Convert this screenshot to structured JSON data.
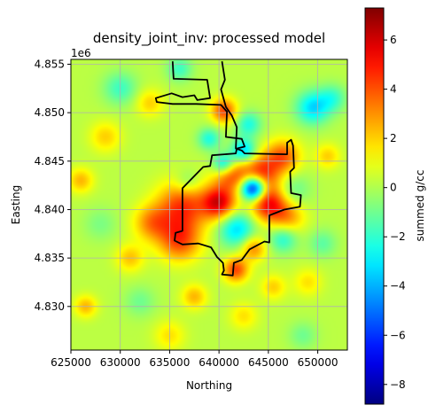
{
  "chart_data": {
    "type": "heatmap",
    "title": "density_joint_inv: processed model",
    "xlabel": "Northing",
    "ylabel": "Easting",
    "y_offset_label": "1e6",
    "xlim": [
      625000,
      653000
    ],
    "ylim": [
      4825500,
      4855500
    ],
    "x_ticks": [
      625000,
      630000,
      635000,
      640000,
      645000,
      650000
    ],
    "x_tick_labels": [
      "625000",
      "630000",
      "635000",
      "640000",
      "645000",
      "650000"
    ],
    "y_ticks": [
      4830000,
      4835000,
      4840000,
      4845000,
      4850000,
      4855000
    ],
    "y_tick_labels": [
      "4.830",
      "4.835",
      "4.840",
      "4.845",
      "4.850",
      "4.855"
    ],
    "grid": true,
    "colormap": "jet",
    "colorbar": {
      "label": "summed g/cc",
      "range": [
        -8.8,
        7.3
      ],
      "ticks": [
        -8,
        -6,
        -4,
        -2,
        0,
        2,
        4,
        6
      ],
      "tick_labels": [
        "−8",
        "−6",
        "−4",
        "−2",
        "0",
        "2",
        "4",
        "6"
      ]
    },
    "background_value": 0.2,
    "anomalies": [
      {
        "x": 643500,
        "y": 4842200,
        "value": -8.8,
        "radius": 900
      },
      {
        "x": 645000,
        "y": 4840600,
        "value": 5.0,
        "radius": 1300
      },
      {
        "x": 640000,
        "y": 4840700,
        "value": 5.5,
        "radius": 1200
      },
      {
        "x": 644200,
        "y": 4843700,
        "value": 4.5,
        "radius": 1400
      },
      {
        "x": 641200,
        "y": 4843600,
        "value": 3.5,
        "radius": 1200
      },
      {
        "x": 641800,
        "y": 4838000,
        "value": -3.5,
        "radius": 1300
      },
      {
        "x": 642500,
        "y": 4846000,
        "value": -4.0,
        "radius": 900
      },
      {
        "x": 640500,
        "y": 4844700,
        "value": -4.0,
        "radius": 800
      },
      {
        "x": 646500,
        "y": 4845500,
        "value": 3.5,
        "radius": 1200
      },
      {
        "x": 636300,
        "y": 4840300,
        "value": 4.2,
        "radius": 1800
      },
      {
        "x": 636000,
        "y": 4836800,
        "value": 3.8,
        "radius": 1500
      },
      {
        "x": 633200,
        "y": 4838600,
        "value": 2.8,
        "radius": 1300
      },
      {
        "x": 640500,
        "y": 4850200,
        "value": 4.0,
        "radius": 900
      },
      {
        "x": 643000,
        "y": 4848800,
        "value": -2.5,
        "radius": 900
      },
      {
        "x": 639000,
        "y": 4847300,
        "value": -2.5,
        "radius": 800
      },
      {
        "x": 641700,
        "y": 4833800,
        "value": 4.0,
        "radius": 900
      },
      {
        "x": 643500,
        "y": 4836000,
        "value": 3.0,
        "radius": 900
      },
      {
        "x": 647000,
        "y": 4839200,
        "value": 2.5,
        "radius": 1200
      },
      {
        "x": 636800,
        "y": 4842800,
        "value": -1.5,
        "radius": 900
      },
      {
        "x": 646500,
        "y": 4837000,
        "value": -2.5,
        "radius": 1000
      },
      {
        "x": 647500,
        "y": 4842000,
        "value": -1.5,
        "radius": 1200
      },
      {
        "x": 649500,
        "y": 4850500,
        "value": -3.5,
        "radius": 1200
      },
      {
        "x": 651500,
        "y": 4851500,
        "value": -2.0,
        "radius": 1000
      },
      {
        "x": 626000,
        "y": 4843000,
        "value": 2.2,
        "radius": 900
      },
      {
        "x": 626500,
        "y": 4830000,
        "value": 2.2,
        "radius": 800
      },
      {
        "x": 630000,
        "y": 4852500,
        "value": -2.0,
        "radius": 1200
      },
      {
        "x": 633000,
        "y": 4851000,
        "value": 1.8,
        "radius": 1000
      },
      {
        "x": 636000,
        "y": 4854500,
        "value": -2.0,
        "radius": 900
      },
      {
        "x": 631000,
        "y": 4835000,
        "value": 2.0,
        "radius": 1000
      },
      {
        "x": 637500,
        "y": 4831000,
        "value": 2.2,
        "radius": 900
      },
      {
        "x": 632000,
        "y": 4830500,
        "value": -1.2,
        "radius": 1100
      },
      {
        "x": 645500,
        "y": 4832000,
        "value": 1.8,
        "radius": 900
      },
      {
        "x": 649000,
        "y": 4832500,
        "value": 1.5,
        "radius": 1000
      },
      {
        "x": 650500,
        "y": 4836500,
        "value": -1.5,
        "radius": 1000
      },
      {
        "x": 628500,
        "y": 4847500,
        "value": 1.8,
        "radius": 1100
      },
      {
        "x": 651000,
        "y": 4845500,
        "value": 1.8,
        "radius": 900
      },
      {
        "x": 635000,
        "y": 4827000,
        "value": 1.5,
        "radius": 1100
      },
      {
        "x": 642500,
        "y": 4829000,
        "value": 1.5,
        "radius": 1000
      },
      {
        "x": 628000,
        "y": 4838500,
        "value": -1.0,
        "radius": 1200
      },
      {
        "x": 648500,
        "y": 4827000,
        "value": -1.2,
        "radius": 1000
      }
    ],
    "boundary": [
      [
        635300,
        4855300
      ],
      [
        635400,
        4853500
      ],
      [
        638800,
        4853400
      ],
      [
        639100,
        4851500
      ],
      [
        637800,
        4851300
      ],
      [
        637500,
        4851800
      ],
      [
        636300,
        4851600
      ],
      [
        635200,
        4852000
      ],
      [
        633600,
        4851500
      ],
      [
        633700,
        4851100
      ],
      [
        635300,
        4850900
      ],
      [
        637700,
        4850900
      ],
      [
        640200,
        4850800
      ],
      [
        640800,
        4850100
      ],
      [
        640700,
        4847500
      ],
      [
        642300,
        4847300
      ],
      [
        642600,
        4846500
      ],
      [
        641800,
        4846300
      ],
      [
        641700,
        4845800
      ],
      [
        639300,
        4845600
      ],
      [
        639100,
        4844500
      ],
      [
        638400,
        4844400
      ],
      [
        636300,
        4842200
      ],
      [
        636300,
        4837800
      ],
      [
        635600,
        4837600
      ],
      [
        635500,
        4836800
      ],
      [
        636300,
        4836400
      ],
      [
        637900,
        4836500
      ],
      [
        639200,
        4836100
      ],
      [
        639800,
        4835100
      ],
      [
        640400,
        4834500
      ],
      [
        640500,
        4833700
      ],
      [
        640300,
        4833300
      ],
      [
        641400,
        4833200
      ],
      [
        641500,
        4834500
      ],
      [
        642300,
        4834800
      ],
      [
        643100,
        4835900
      ],
      [
        644600,
        4836700
      ],
      [
        645100,
        4836600
      ],
      [
        645100,
        4839400
      ],
      [
        646600,
        4840000
      ],
      [
        648200,
        4840300
      ],
      [
        648300,
        4841500
      ],
      [
        647300,
        4841700
      ],
      [
        647200,
        4843900
      ],
      [
        647600,
        4844300
      ],
      [
        647500,
        4846600
      ],
      [
        647300,
        4847200
      ],
      [
        646900,
        4846900
      ],
      [
        646900,
        4845700
      ],
      [
        642600,
        4845800
      ],
      [
        642300,
        4846100
      ],
      [
        641700,
        4846300
      ],
      [
        641800,
        4848500
      ],
      [
        641300,
        4849700
      ],
      [
        640700,
        4850600
      ],
      [
        640200,
        4852400
      ],
      [
        640600,
        4853400
      ],
      [
        640300,
        4855300
      ]
    ]
  }
}
